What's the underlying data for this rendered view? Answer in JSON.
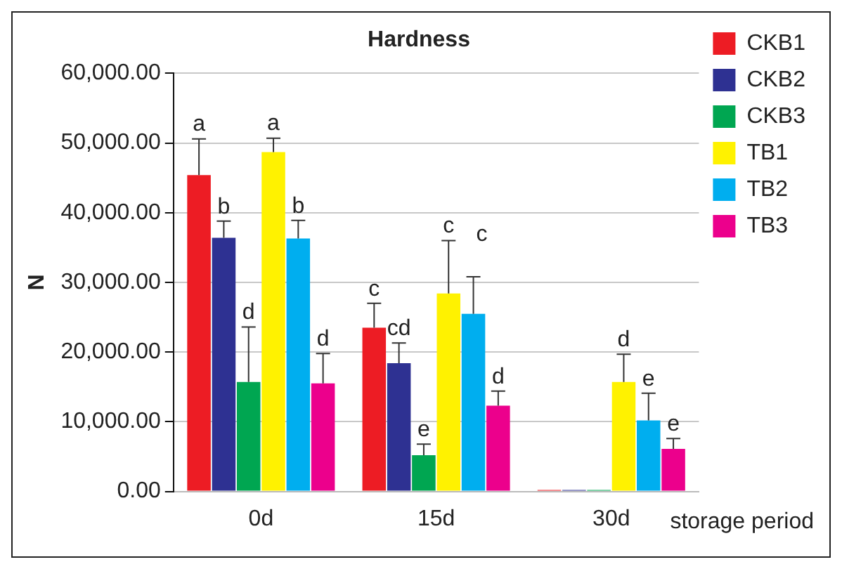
{
  "chart_data": {
    "type": "bar",
    "title": "Hardness",
    "xlabel": "storage period",
    "ylabel": "N",
    "categories": [
      "0d",
      "15d",
      "30d"
    ],
    "series": [
      {
        "name": "CKB1",
        "color": "#ed1c24",
        "values": [
          45400,
          23500,
          200
        ],
        "errors": [
          [
            45400,
            50600
          ],
          [
            23500,
            27000
          ],
          null
        ]
      },
      {
        "name": "CKB2",
        "color": "#2e3192",
        "values": [
          36400,
          18400,
          200
        ],
        "errors": [
          [
            36400,
            38800
          ],
          [
            18400,
            21300
          ],
          null
        ]
      },
      {
        "name": "CKB3",
        "color": "#00a651",
        "values": [
          15700,
          5200,
          200
        ],
        "errors": [
          [
            15700,
            23600
          ],
          [
            5200,
            6800
          ],
          null
        ]
      },
      {
        "name": "TB1",
        "color": "#fff200",
        "values": [
          48700,
          28400,
          15700
        ],
        "errors": [
          [
            48700,
            50700
          ],
          [
            28400,
            36000
          ],
          [
            15700,
            19700
          ]
        ]
      },
      {
        "name": "TB2",
        "color": "#00aeef",
        "values": [
          36300,
          25500,
          10200
        ],
        "errors": [
          [
            36300,
            38900
          ],
          [
            25500,
            30800
          ],
          [
            10200,
            14100
          ]
        ]
      },
      {
        "name": "TB3",
        "color": "#ec008c",
        "values": [
          15500,
          12300,
          6100
        ],
        "errors": [
          [
            15500,
            19800
          ],
          [
            12300,
            14400
          ],
          [
            6100,
            7600
          ]
        ]
      }
    ],
    "ylim": [
      0,
      60000
    ],
    "yticks": [
      {
        "value": 0,
        "label": "0.00"
      },
      {
        "value": 10000,
        "label": "10,000.00"
      },
      {
        "value": 20000,
        "label": "20,000.00"
      },
      {
        "value": 30000,
        "label": "30,000.00"
      },
      {
        "value": 40000,
        "label": "40,000.00"
      },
      {
        "value": 50000,
        "label": "50,000.00"
      },
      {
        "value": 60000,
        "label": "60,000.00"
      }
    ],
    "grid": "y",
    "legend": "right",
    "annotations": [
      {
        "text": "a",
        "x": "0d",
        "y": 50600
      },
      {
        "text": "b",
        "x": "0d",
        "y": 38800
      },
      {
        "text": "d",
        "x": "0d",
        "y": 23600
      },
      {
        "text": "a",
        "x": "0d",
        "y": 50700
      },
      {
        "text": "b",
        "x": "0d",
        "y": 38900
      },
      {
        "text": "d",
        "x": "0d",
        "y": 19800
      },
      {
        "text": "c",
        "x": "15d",
        "y": 27000
      },
      {
        "text": "cd",
        "x": "15d",
        "y": 21300
      },
      {
        "text": "e",
        "x": "15d",
        "y": 6800
      },
      {
        "text": "c",
        "x": "15d",
        "y": 36000
      },
      "c",
      {
        "text": "d",
        "x": "15d",
        "y": 14400
      },
      {
        "text": "d",
        "x": "30d",
        "y": 19700
      },
      {
        "text": "e",
        "x": "30d",
        "y": 14100
      },
      {
        "text": "e",
        "x": "30d",
        "y": 7600
      }
    ]
  }
}
